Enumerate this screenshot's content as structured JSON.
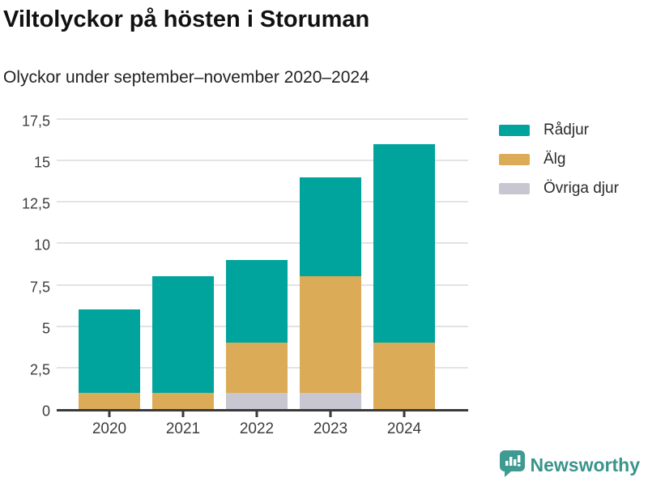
{
  "header": {
    "title": "Viltolyckor på hösten i Storuman",
    "subtitle": "Olyckor under september–november 2020–2024"
  },
  "chart_data": {
    "type": "bar",
    "stacked": true,
    "title": "Viltolyckor på hösten i Storuman",
    "subtitle": "Olyckor under september–november 2020–2024",
    "categories": [
      "2020",
      "2021",
      "2022",
      "2023",
      "2024"
    ],
    "series": [
      {
        "name": "Rådjur",
        "color": "#00a49c",
        "values": [
          5,
          7,
          5,
          6,
          12
        ]
      },
      {
        "name": "Älg",
        "color": "#dbab57",
        "values": [
          1,
          1,
          3,
          7,
          4
        ]
      },
      {
        "name": "Övriga djur",
        "color": "#c7c6d1",
        "values": [
          0,
          0,
          1,
          1,
          0
        ]
      }
    ],
    "stack_order_bottom_to_top": [
      "Övriga djur",
      "Älg",
      "Rådjur"
    ],
    "totals": [
      6,
      8,
      9,
      14,
      16
    ],
    "xlabel": "",
    "ylabel": "",
    "ylim": [
      0,
      17.5
    ],
    "yticks": [
      {
        "value": 0,
        "label": "0"
      },
      {
        "value": 2.5,
        "label": "2,5"
      },
      {
        "value": 5,
        "label": "5"
      },
      {
        "value": 7.5,
        "label": "7,5"
      },
      {
        "value": 10,
        "label": "10"
      },
      {
        "value": 12.5,
        "label": "12,5"
      },
      {
        "value": 15,
        "label": "15"
      },
      {
        "value": 17.5,
        "label": "17,5"
      }
    ],
    "grid": "horizontal",
    "gridline_color": "#e3e3e3",
    "axis_color": "#3a3a3a",
    "legend_position": "top-right"
  },
  "footer": {
    "brand": "Newsworthy",
    "brand_color": "#3a948c",
    "logo_icon": "bar-chart-speech-bubble-icon"
  }
}
